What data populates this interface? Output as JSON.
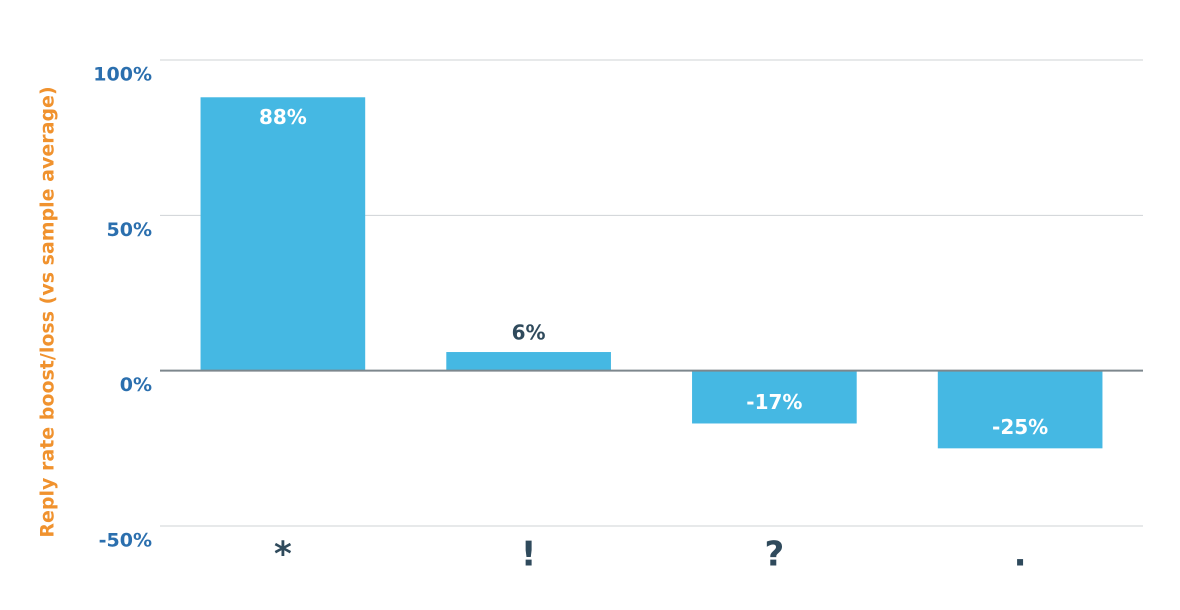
{
  "chart_data": {
    "type": "bar",
    "y_label": "Reply rate boost/loss (vs sample average)",
    "categories": [
      "*",
      "!",
      "?",
      "."
    ],
    "values": [
      88,
      6,
      -17,
      -25
    ],
    "value_labels": [
      "88%",
      "6%",
      "-17%",
      "-25%"
    ],
    "color": "#45b8e3",
    "ylim": [
      -50,
      100
    ],
    "yticks": [
      {
        "value": -50,
        "label": "-50%"
      },
      {
        "value": 0,
        "label": "0%"
      },
      {
        "value": 50,
        "label": "50%"
      },
      {
        "value": 100,
        "label": "100%"
      }
    ],
    "grid": true
  }
}
